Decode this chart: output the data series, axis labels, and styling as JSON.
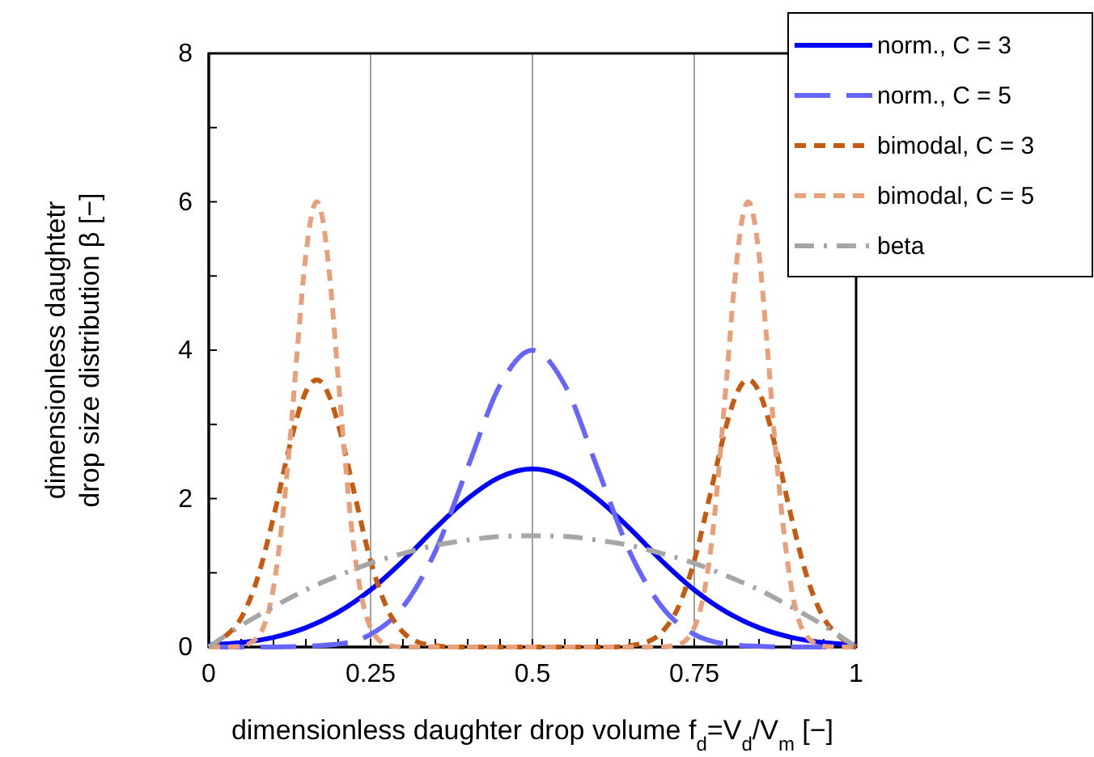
{
  "chart_data": {
    "type": "line",
    "xlabel": "dimensionless daughter drop volume f$_{d}$=V$_{d}$/V$_{m}$ [−]",
    "ylabel": "dimensionless daughtetr\ndrop size distribution β [−]",
    "xlim": [
      0,
      1
    ],
    "ylim": [
      0,
      8
    ],
    "xticks": [
      0,
      {
        "value": 0.05,
        "label": null
      },
      {
        "value": 0.1,
        "label": null
      },
      {
        "value": 0.15,
        "label": null
      },
      {
        "value": 0.2,
        "label": null
      },
      0.25,
      {
        "value": 0.3,
        "label": null
      },
      {
        "value": 0.35,
        "label": null
      },
      {
        "value": 0.4,
        "label": null
      },
      {
        "value": 0.45,
        "label": null
      },
      0.5,
      {
        "value": 0.55,
        "label": null
      },
      {
        "value": 0.6,
        "label": null
      },
      {
        "value": 0.65,
        "label": null
      },
      {
        "value": 0.7,
        "label": null
      },
      0.75,
      {
        "value": 0.8,
        "label": null
      },
      {
        "value": 0.85,
        "label": null
      },
      {
        "value": 0.9,
        "label": null
      },
      {
        "value": 0.95,
        "label": null
      },
      1
    ],
    "yticks": [
      0,
      {
        "value": 1,
        "label": null
      },
      2,
      {
        "value": 3,
        "label": null
      },
      4,
      {
        "value": 5,
        "label": null
      },
      6,
      {
        "value": 7,
        "label": null
      },
      8
    ],
    "grid": "x",
    "legend": "top right",
    "marker": "none",
    "series": [
      {
        "name": "norm., C = 3",
        "color": "#0000ff",
        "line_style": "solid",
        "x": [
          0,
          0.05,
          0.1,
          0.15,
          0.2,
          0.25,
          0.3,
          0.35,
          0.4,
          0.45,
          0.5,
          0.55,
          0.6,
          0.65,
          0.7,
          0.75,
          0.8,
          0.85,
          0.9,
          0.95,
          1
        ],
        "values": [
          0.03,
          0.06,
          0.13,
          0.26,
          0.47,
          0.77,
          1.16,
          1.6,
          2.0,
          2.29,
          2.4,
          2.29,
          2.0,
          1.6,
          1.16,
          0.77,
          0.47,
          0.26,
          0.13,
          0.06,
          0.03
        ]
      },
      {
        "name": "norm., C = 5",
        "color": "#6666ff",
        "line_style": "longdash",
        "x": [
          0,
          0.05,
          0.1,
          0.15,
          0.2,
          0.25,
          0.3,
          0.35,
          0.4,
          0.45,
          0.5,
          0.55,
          0.6,
          0.65,
          0.7,
          0.75,
          0.8,
          0.85,
          0.9,
          0.95,
          1
        ],
        "values": [
          0,
          0,
          0,
          0.01,
          0.04,
          0.17,
          0.54,
          1.29,
          2.42,
          3.53,
          4,
          3.53,
          2.42,
          1.29,
          0.54,
          0.17,
          0.04,
          0.01,
          0,
          0,
          0
        ]
      },
      {
        "name": "bimodal, C = 3",
        "color": "#c55a11",
        "line_style": "dashed",
        "x": [
          0,
          0.025,
          0.05,
          0.075,
          0.1,
          0.125,
          0.1375,
          0.15,
          0.1667,
          0.175,
          0.1875,
          0.2,
          0.225,
          0.25,
          0.275,
          0.3,
          0.325,
          0.35,
          0.375,
          0.4,
          0.5,
          0.6,
          0.625,
          0.65,
          0.675,
          0.7,
          0.725,
          0.75,
          0.775,
          0.8,
          0.8125,
          0.825,
          0.8333,
          0.85,
          0.8625,
          0.875,
          0.9,
          0.925,
          0.95,
          0.975,
          1
        ],
        "values": [
          0,
          0.14,
          0.39,
          0.92,
          1.75,
          2.71,
          3.13,
          3.44,
          3.6,
          3.56,
          3.35,
          3.0,
          2.07,
          1.16,
          0.53,
          0.2,
          0.06,
          0.02,
          0,
          0,
          0,
          0,
          0,
          0.02,
          0.06,
          0.2,
          0.53,
          1.16,
          2.07,
          3.0,
          3.35,
          3.56,
          3.6,
          3.44,
          3.13,
          2.71,
          1.75,
          0.92,
          0.39,
          0.14,
          0
        ]
      },
      {
        "name": "bimodal, C = 5",
        "color": "#e8a07a",
        "line_style": "dashed",
        "x": [
          0,
          0.025,
          0.05,
          0.075,
          0.1,
          0.125,
          0.1375,
          0.15,
          0.1667,
          0.175,
          0.1875,
          0.2,
          0.225,
          0.25,
          0.275,
          0.3,
          0.325,
          0.35,
          0.375,
          0.4,
          0.5,
          0.6,
          0.625,
          0.65,
          0.675,
          0.7,
          0.725,
          0.75,
          0.775,
          0.8,
          0.8125,
          0.825,
          0.8333,
          0.85,
          0.8625,
          0.875,
          0.9,
          0.925,
          0.95,
          0.975,
          1
        ],
        "values": [
          0,
          0,
          0.01,
          0.13,
          0.8,
          2.73,
          4.08,
          5.29,
          6,
          5.81,
          4.93,
          3.62,
          1.28,
          0.26,
          0.03,
          0,
          0,
          0,
          0,
          0,
          0,
          0,
          0,
          0,
          0,
          0,
          0.03,
          0.26,
          1.28,
          3.62,
          4.93,
          5.81,
          6,
          5.29,
          4.08,
          2.73,
          0.8,
          0.13,
          0.01,
          0,
          0
        ]
      },
      {
        "name": "beta",
        "color": "#a6a6a6",
        "line_style": "dashdot",
        "x": [
          0,
          0.05,
          0.1,
          0.15,
          0.2,
          0.25,
          0.3,
          0.35,
          0.4,
          0.45,
          0.5,
          0.55,
          0.6,
          0.65,
          0.7,
          0.75,
          0.8,
          0.85,
          0.9,
          0.95,
          1
        ],
        "values": [
          0,
          0.29,
          0.54,
          0.77,
          0.96,
          1.13,
          1.26,
          1.37,
          1.44,
          1.49,
          1.5,
          1.49,
          1.44,
          1.37,
          1.26,
          1.13,
          0.96,
          0.77,
          0.54,
          0.29,
          0
        ]
      }
    ]
  }
}
